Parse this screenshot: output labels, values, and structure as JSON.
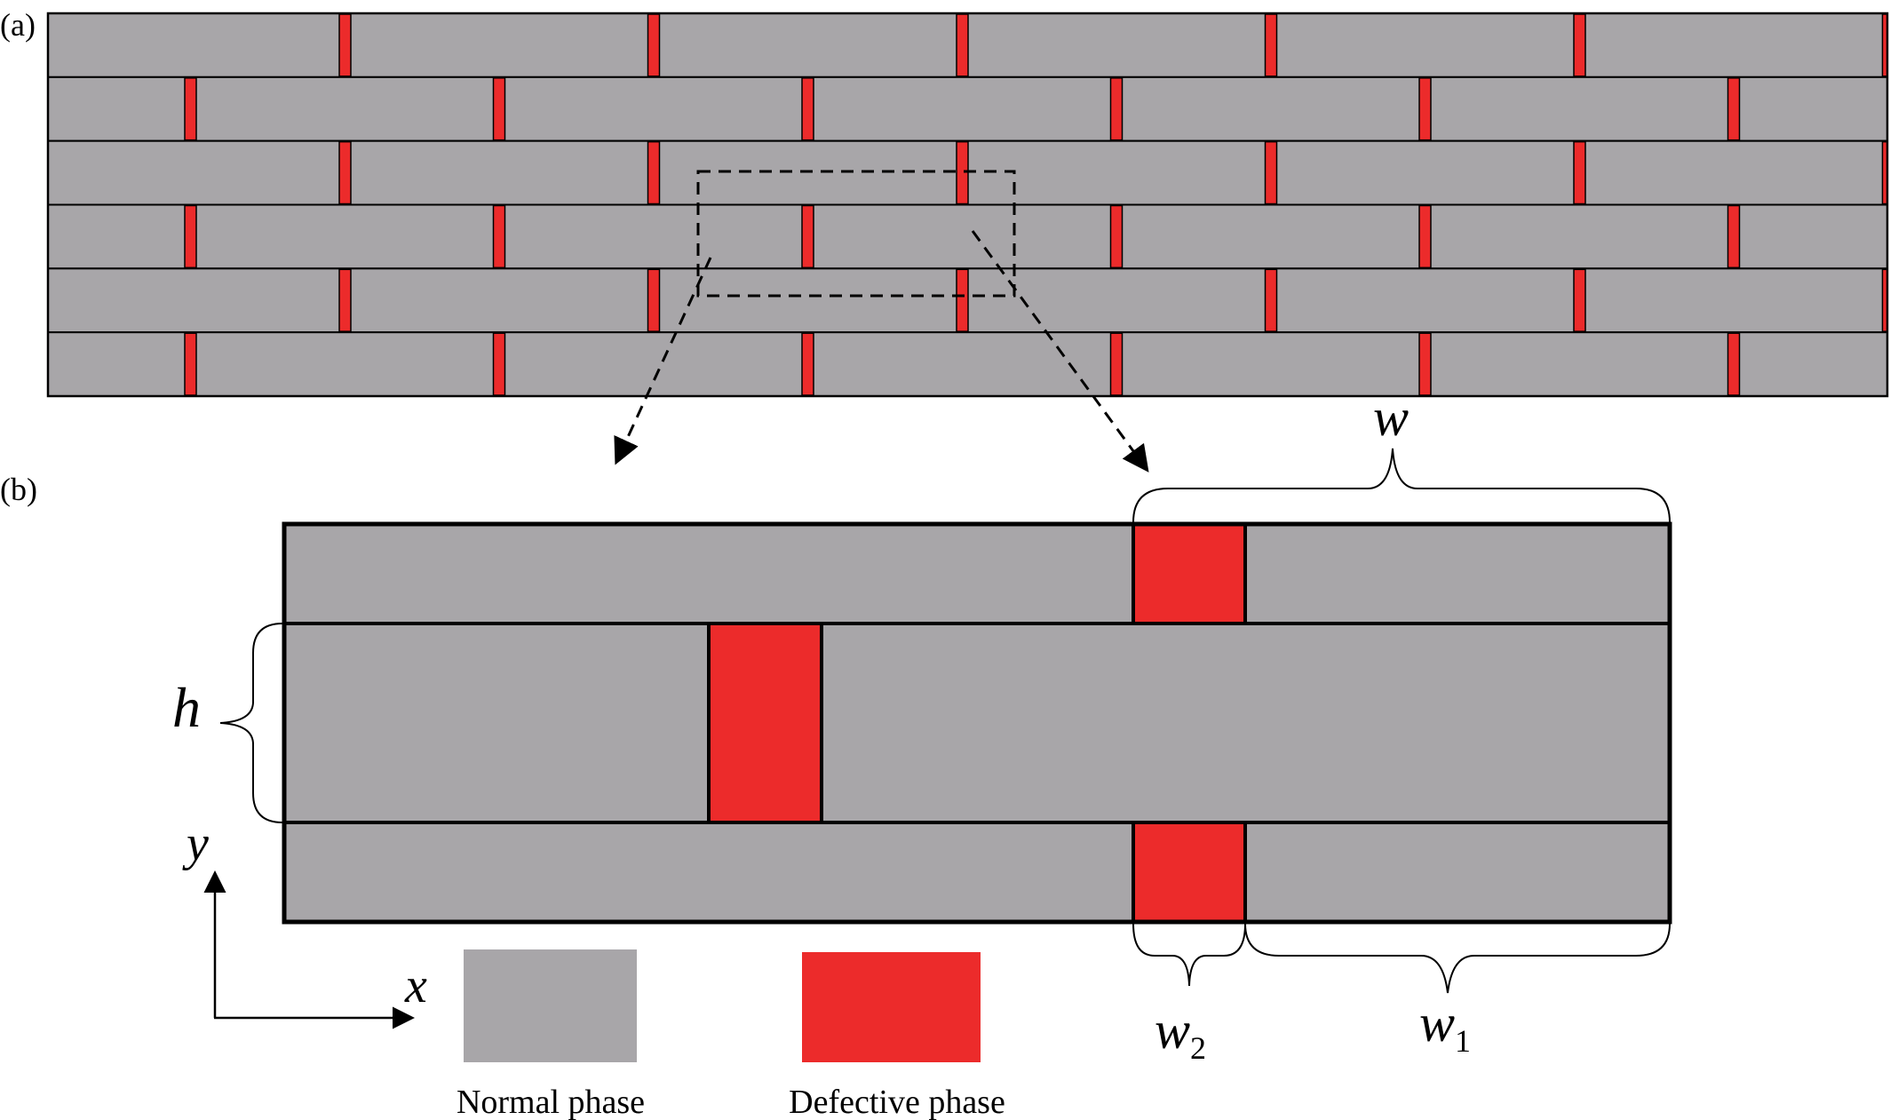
{
  "figure": {
    "panel_a_label": "(a)",
    "panel_b_label": "(b)",
    "colors": {
      "normal": "#a8a6a9",
      "defective": "#ec2b2b",
      "outline": "#000000"
    },
    "panel_a": {
      "rows": 6,
      "bricks_per_row_visible": 6
    },
    "panel_b": {
      "dimension_labels": {
        "w": "w",
        "h": "h",
        "w1_base": "w",
        "w1_sub": "1",
        "w2_base": "w",
        "w2_sub": "2"
      },
      "axes": {
        "x": "x",
        "y": "y"
      }
    },
    "legend": [
      {
        "label": "Normal phase",
        "color": "#a8a6a9"
      },
      {
        "label": "Defective phase",
        "color": "#ec2b2b"
      }
    ]
  }
}
